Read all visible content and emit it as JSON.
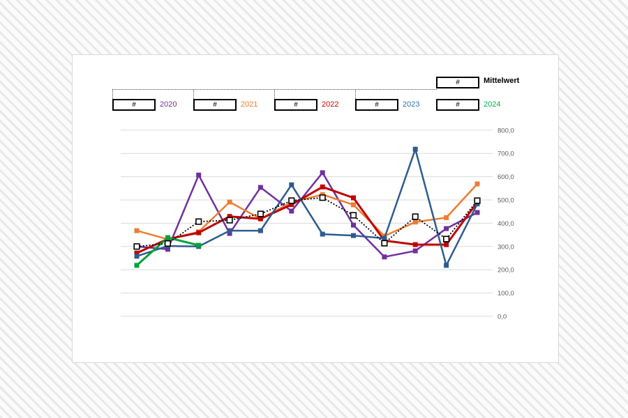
{
  "legend": {
    "field_text": "#",
    "mittelwert": {
      "label": "Mittelwert",
      "color": "#000000"
    },
    "years": [
      {
        "label": "2020",
        "color": "#7030A0"
      },
      {
        "label": "2021",
        "color": "#ED7D31"
      },
      {
        "label": "2022",
        "color": "#D40000"
      },
      {
        "label": "2023",
        "color": "#2E74B5"
      },
      {
        "label": "2024",
        "color": "#00B050"
      }
    ]
  },
  "axis": {
    "y_tick_labels": [
      "0,0",
      "100,0",
      "200,0",
      "300,0",
      "400,0",
      "500,0",
      "600,0",
      "700,0",
      "800,0"
    ],
    "label_color": "#595959"
  },
  "chart_data": {
    "type": "line",
    "x_count": 12,
    "x_tick_labels": [],
    "ylim": [
      0,
      800
    ],
    "y_ticks": [
      0,
      100,
      200,
      300,
      400,
      500,
      600,
      700,
      800
    ],
    "grid": "horizontal",
    "gridline_color": "#d9d9d9",
    "legend_position": "top",
    "series": [
      {
        "name": "2020",
        "color": "#7030A0",
        "line": "solid",
        "marker": "square",
        "values": [
          300,
          288,
          607,
          356,
          554,
          452,
          617,
          392,
          255,
          281,
          377,
          446
        ]
      },
      {
        "name": "2021",
        "color": "#ED7D31",
        "line": "solid",
        "marker": "square",
        "values": [
          368,
          331,
          363,
          491,
          419,
          490,
          523,
          479,
          345,
          405,
          424,
          569
        ]
      },
      {
        "name": "2022",
        "color": "#C00000",
        "line": "solid",
        "marker": "square",
        "values": [
          272,
          332,
          359,
          429,
          419,
          480,
          556,
          509,
          325,
          308,
          308,
          490
        ]
      },
      {
        "name": "2023",
        "color": "#2E5B8F",
        "line": "solid",
        "marker": "square",
        "values": [
          258,
          302,
          300,
          368,
          368,
          565,
          353,
          347,
          335,
          718,
          219,
          483
        ]
      },
      {
        "name": "2024",
        "color": "#00A13A",
        "line": "solid",
        "marker": "square",
        "values": [
          219,
          338,
          305,
          null,
          null,
          null,
          null,
          null,
          null,
          null,
          null,
          null
        ]
      },
      {
        "name": "Mittelwert",
        "color": "#000000",
        "line": "dotted",
        "marker": "open-square",
        "values": [
          300,
          313,
          407,
          413,
          440,
          497,
          510,
          434,
          314,
          428,
          332,
          497
        ]
      }
    ]
  }
}
